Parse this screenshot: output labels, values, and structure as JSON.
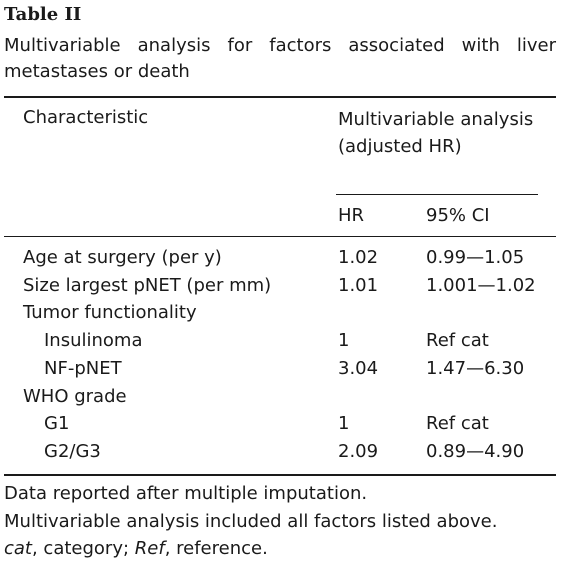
{
  "table_label": "Table II",
  "caption": "Multivariable analysis for factors associated with liver metastases or death",
  "header": {
    "characteristic": "Characteristic",
    "group": "Multivariable analysis (adjusted HR)",
    "hr": "HR",
    "ci": "95% CI"
  },
  "rows": [
    {
      "label": "Age at surgery (per y)",
      "hr": "1.02",
      "ci": "0.99—1.05"
    },
    {
      "label": "Size largest pNET (per mm)",
      "hr": "1.01",
      "ci": "1.001—1.02"
    },
    {
      "label": "Tumor functionality",
      "hr": "",
      "ci": ""
    },
    {
      "label": "Insulinoma",
      "hr": "1",
      "ci": "Ref cat"
    },
    {
      "label": "NF-pNET",
      "hr": "3.04",
      "ci": "1.47—6.30"
    },
    {
      "label": "WHO grade",
      "hr": "",
      "ci": ""
    },
    {
      "label": "G1",
      "hr": "1",
      "ci": "Ref cat"
    },
    {
      "label": "G2/G3",
      "hr": "2.09",
      "ci": "0.89—4.90"
    }
  ],
  "footnotes": {
    "line1": "Data reported after multiple imputation.",
    "line2": "Multivariable analysis included all factors listed above.",
    "abbr_cat_term": "cat",
    "abbr_cat_def": ", category; ",
    "abbr_ref_term": "Ref",
    "abbr_ref_def": ", reference."
  }
}
